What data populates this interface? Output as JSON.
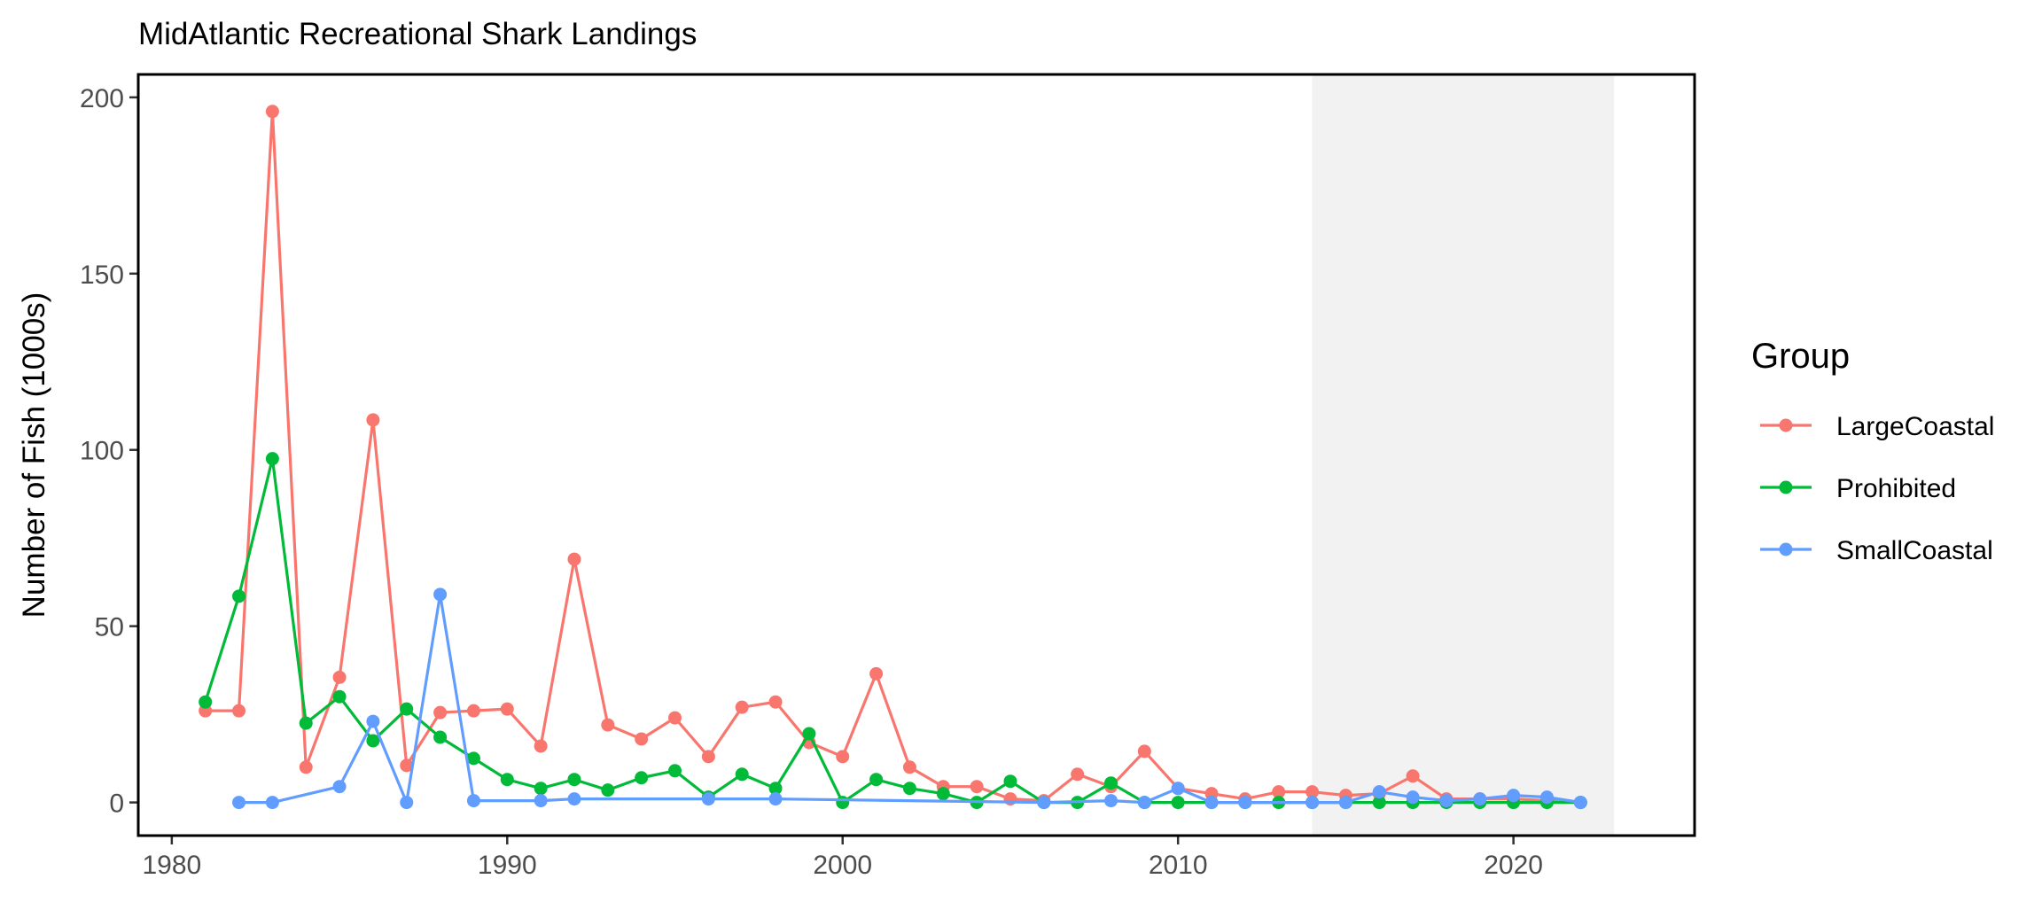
{
  "chart_data": {
    "type": "line",
    "title": "MidAtlantic Recreational Shark Landings",
    "xlabel": "",
    "ylabel": "Number of Fish (1000s)",
    "xlim": [
      1979,
      2025.4
    ],
    "ylim": [
      -9.4,
      206.5
    ],
    "xticks": [
      1980,
      1990,
      2000,
      2010,
      2020
    ],
    "yticks": [
      0,
      50,
      100,
      150,
      200
    ],
    "grid": false,
    "shaded_region": {
      "x_start": 2014,
      "x_end": 2023,
      "color": "#f2f2f2"
    },
    "legend": {
      "title": "Group",
      "placement": "right"
    },
    "series": [
      {
        "name": "LargeCoastal",
        "color": "#F8766D",
        "x": [
          1981,
          1982,
          1983,
          1984,
          1985,
          1986,
          1987,
          1988,
          1989,
          1990,
          1991,
          1992,
          1993,
          1994,
          1995,
          1996,
          1997,
          1998,
          1999,
          2000,
          2001,
          2002,
          2003,
          2004,
          2005,
          2006,
          2007,
          2008,
          2009,
          2010,
          2011,
          2012,
          2013,
          2014,
          2015,
          2016,
          2017,
          2018,
          2019,
          2020,
          2021,
          2022
        ],
        "values": [
          26,
          26,
          196,
          10,
          35.5,
          108.5,
          10.5,
          25.5,
          26,
          26.5,
          16,
          69,
          22,
          18,
          24,
          13,
          27,
          28.5,
          17,
          13,
          36.5,
          10,
          4.5,
          4.5,
          1,
          0.5,
          8,
          4.5,
          14.5,
          4,
          2.5,
          1,
          3,
          3,
          2,
          2.5,
          7.5,
          1,
          1,
          1,
          0.5,
          0
        ]
      },
      {
        "name": "Prohibited",
        "color": "#00BA38",
        "x": [
          1981,
          1982,
          1983,
          1984,
          1985,
          1986,
          1987,
          1988,
          1989,
          1990,
          1991,
          1992,
          1993,
          1994,
          1995,
          1996,
          1997,
          1998,
          1999,
          2000,
          2001,
          2002,
          2003,
          2004,
          2005,
          2006,
          2007,
          2008,
          2009,
          2010,
          2011,
          2012,
          2013,
          2014,
          2015,
          2016,
          2017,
          2018,
          2019,
          2020,
          2021,
          2022
        ],
        "values": [
          28.5,
          58.5,
          97.5,
          22.5,
          30,
          17.5,
          26.5,
          18.5,
          12.5,
          6.5,
          4,
          6.5,
          3.5,
          7,
          9,
          1.5,
          8,
          4,
          19.5,
          0,
          6.5,
          4,
          2.5,
          0,
          6,
          0,
          0,
          5.5,
          0,
          0,
          0,
          0,
          0,
          0,
          0,
          0,
          0,
          0,
          0,
          0,
          0,
          0
        ]
      },
      {
        "name": "SmallCoastal",
        "color": "#619CFF",
        "x": [
          1982,
          1983,
          1985,
          1986,
          1987,
          1988,
          1989,
          1991,
          1992,
          1996,
          1998,
          2006,
          2008,
          2009,
          2010,
          2011,
          2012,
          2014,
          2015,
          2016,
          2017,
          2018,
          2019,
          2020,
          2021,
          2022
        ],
        "values": [
          0,
          0,
          4.5,
          23,
          0,
          59,
          0.5,
          0.5,
          1,
          1,
          1,
          0,
          0.5,
          0,
          4,
          0,
          0,
          0,
          0,
          3,
          1.5,
          0.5,
          1,
          2,
          1.5,
          0
        ]
      }
    ]
  }
}
